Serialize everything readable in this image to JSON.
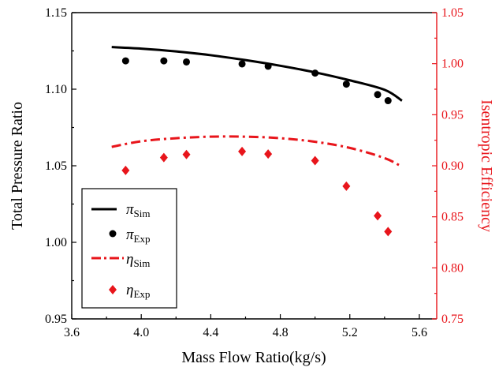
{
  "chart_data": {
    "type": "line",
    "xlabel": "Mass Flow Ratio(kg/s)",
    "ylabel_left": "Total Pressure Ratio",
    "ylabel_right": "Isentropic Efficiency",
    "xlim": [
      3.6,
      5.7
    ],
    "ylim_left": [
      0.95,
      1.15
    ],
    "ylim_right": [
      0.75,
      1.05
    ],
    "x_ticks": [
      "3.6",
      "4.0",
      "4.4",
      "4.8",
      "5.2",
      "5.6"
    ],
    "y_left_ticks": [
      "0.95",
      "1.00",
      "1.05",
      "1.10",
      "1.15"
    ],
    "y_right_ticks": [
      "0.75",
      "0.80",
      "0.85",
      "0.90",
      "0.95",
      "1.00",
      "1.05"
    ],
    "grid": false,
    "legend_position": "bottom-left",
    "colors": {
      "black": "#000000",
      "red": "#e8151b"
    },
    "series": [
      {
        "name": "π",
        "name_sub": "Sim",
        "axis": "left",
        "style": "solid-line",
        "color": "#000000",
        "x": [
          3.83,
          4.0,
          4.2,
          4.4,
          4.6,
          4.8,
          5.0,
          5.2,
          5.4,
          5.5
        ],
        "y": [
          1.1275,
          1.1265,
          1.1247,
          1.1222,
          1.119,
          1.1153,
          1.111,
          1.1058,
          1.0996,
          1.0925
        ]
      },
      {
        "name": "π",
        "name_sub": "Exp",
        "axis": "left",
        "style": "circle-marker",
        "color": "#000000",
        "x": [
          3.91,
          4.13,
          4.26,
          4.58,
          4.73,
          5.0,
          5.18,
          5.36,
          5.42
        ],
        "y": [
          1.1185,
          1.1185,
          1.1178,
          1.1165,
          1.115,
          1.1105,
          1.1033,
          1.0965,
          1.0925
        ]
      },
      {
        "name": "η",
        "name_sub": "Sim",
        "axis": "right",
        "style": "dash-dot-line",
        "color": "#e8151b",
        "x": [
          3.83,
          4.0,
          4.2,
          4.4,
          4.6,
          4.8,
          5.0,
          5.2,
          5.4,
          5.5
        ],
        "y": [
          0.9185,
          0.924,
          0.927,
          0.9285,
          0.9285,
          0.927,
          0.9235,
          0.9175,
          0.9075,
          0.899
        ]
      },
      {
        "name": "η",
        "name_sub": "Exp",
        "axis": "right",
        "style": "diamond-marker",
        "color": "#e8151b",
        "x": [
          3.91,
          4.13,
          4.26,
          4.58,
          4.73,
          5.0,
          5.18,
          5.36,
          5.42
        ],
        "y": [
          0.8955,
          0.908,
          0.911,
          0.914,
          0.9115,
          0.905,
          0.88,
          0.851,
          0.8355
        ]
      }
    ]
  }
}
